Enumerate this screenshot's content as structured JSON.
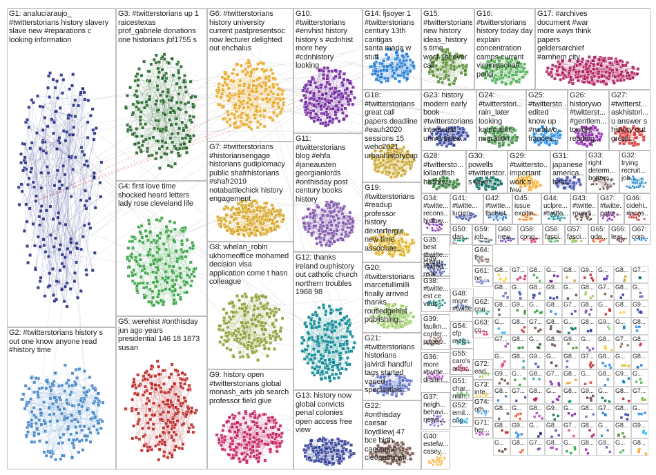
{
  "graph": {
    "title": "",
    "groups": [
      {
        "id": "G1",
        "label": "G1: analuciaraujo_\n#twitterstorians history slavery\nslave new #reparations c\nlooking information",
        "color": "#1a237e"
      },
      {
        "id": "G2",
        "label": "G2: #twitterstorians history s\nout one know anyone read\n#history time",
        "color": "#3b7fc4"
      },
      {
        "id": "G3",
        "label": "G3: #twitterstorians up 1\nraicestexas\nprof_gabriele donations\none historians jbf1755 s",
        "color": "#1b5e20"
      },
      {
        "id": "G4",
        "label": "G4: first love time\nshocked heard letters\nlady rose cleveland life",
        "color": "#2e9e3a"
      },
      {
        "id": "G5",
        "label": "G5: werehist #onthisday\njun ago years\npresidential 146 18 1873\nsusan",
        "color": "#b71c1c"
      },
      {
        "id": "G6",
        "label": "G6: #twitterstorians\nhistory university\ncurrent pastpresentsoc\nnow lecturer delighted\nout ehchalus",
        "color": "#e6a41c"
      },
      {
        "id": "G7",
        "label": "G7: #twitterstorians\n#historiansengage\nhistorians gudiplomacy\npublic shafrhistorians\n#shafr2019\nnotabattlechick history\nengagement",
        "color": "#d4a017"
      },
      {
        "id": "G8",
        "label": "G8: whelan_robin\nukhomeoffice mohamed\ndecision visa\napplication come t hasn\ncolleague",
        "color": "#8a9a2e"
      },
      {
        "id": "G9",
        "label": "G9: history open\n#twitterstorians global\nmonash_arts job search\nprofessor field give",
        "color": "#c2185b"
      },
      {
        "id": "G10",
        "label": "G10: #twitterstorians\n#envhist history\nhistory s #cdnhist\nmore hey\n#cdnhistory\nlooking",
        "color": "#6a1b9a"
      },
      {
        "id": "G11",
        "label": "G11: #twitterstorians\nblog #ehfa\n#janeausten\ngeorgianlords\n#onthisday post\ncentury books\nhistory",
        "color": "#7b4fa8"
      },
      {
        "id": "G12",
        "label": "G12: thanks\nireland ouphistory\nout catholic church\nnorthern troubles\n1968 98",
        "color": "#00838f"
      },
      {
        "id": "G13",
        "label": "G13: history now\nglobal convicts\npenal colonies\nopen access free\nview",
        "color": "#283593"
      },
      {
        "id": "G14",
        "label": "G14: fjsoyer 1\n#twitterstorians\ncentury 13th cantigas\nsanta maria w stuff",
        "color": "#1976d2"
      },
      {
        "id": "G15",
        "label": "G15: #twitterstorians\nnew history\nideas_history s time\nwest 1st over call",
        "color": "#558b2f"
      },
      {
        "id": "G16",
        "label": "G16:\n#twitterstorians\nhistory today day\nexplain\nconcentration\ncamps current\nvirginiaschaff\npolici",
        "color": "#4caf50"
      },
      {
        "id": "G17",
        "label": "G17: #archives\ndocument #war\nmore ways think\npapers\ngeldersarchief\n#arnhem city",
        "color": "#ad1457"
      },
      {
        "id": "G18",
        "label": "G18:\n#twitterstorians\ngreat call\npapers deadline\n#eauh2020\nsessions 15\nwehc2021\nurbanhistorycup",
        "color": "#c9a227"
      },
      {
        "id": "G19",
        "label": "G19:\n#twitterstorians\n#readup\nprofessor\nhistory\ndexterfergie\nnew time\nassociate...",
        "color": "#e0b020"
      },
      {
        "id": "G20",
        "label": "G20:\n#twitterstorians\nmarcetullimilli\nfinally arrived\nthanks\nroutledgehist\npublishing...",
        "color": "#9ccc65"
      },
      {
        "id": "G21",
        "label": "G21:\n#twitterstorians\nhistorians\njaivirdi handful\ntags started\nvaried\nspecialities...",
        "color": "#5c6bc0"
      },
      {
        "id": "G22",
        "label": "G22:\n#onthisday\ncaesar\nlloydllewj 47\nbce birth\ncaesarion\ncleopatra vii...",
        "color": "#6d4c41"
      },
      {
        "id": "G23",
        "label": "G23: history\nmodern early\nbook\n#twitterstorians\ninterested\nuniversities...",
        "color": "#303f9f"
      },
      {
        "id": "G24",
        "label": "G24:\n#twitterstori...\nrain_later\nlooking\nkatricianh\nmigration...",
        "color": "#388e3c"
      },
      {
        "id": "G25",
        "label": "G25:\n#twittersto...\nedited\nknow up\n#ruralwo...\nfrances...",
        "color": "#1e88e5"
      },
      {
        "id": "G26",
        "label": "G26:\nhistorywo\n#twitterst...\n#gentlem...\ntonight\nreading...",
        "color": "#8e24aa"
      },
      {
        "id": "G27",
        "label": "G27:\n#twitterst...\naskhistori...\nu answer s\nhistory out\ngreat...",
        "color": "#d32f2f"
      },
      {
        "id": "G28",
        "label": "G28:\n#twittersto...\nlollardfish\nhistory...",
        "color": "#2e7d32"
      },
      {
        "id": "G30",
        "label": "G30:\npowells\n#twitterstor...\ns fave...",
        "color": "#00695c"
      },
      {
        "id": "G29",
        "label": "G29:\n#twittersto...\nimportant\nwork s few...",
        "color": "#f9a825"
      },
      {
        "id": "G31",
        "label": "G31:\njapanese\namerica...\nheld...",
        "color": "#3949ab"
      },
      {
        "id": "G33",
        "label": "G33:\nright\ndeterm...\nbottom...",
        "color": "#5d4037"
      },
      {
        "id": "G32",
        "label": "G32:\ntrying\nrecruit...\njob...",
        "color": "#0277bd"
      },
      {
        "id": "G34",
        "label": "G34:\n#twitte...\nrecons...\nhistory...",
        "color": "#6a1b9a"
      },
      {
        "id": "G41",
        "label": "G41:\n#twitte...\nlucien...",
        "color": "#283593"
      },
      {
        "id": "G42",
        "label": "G42:\n#twitte...\nthehist...",
        "color": "#1565c0"
      },
      {
        "id": "G45",
        "label": "G45:\nissue\nexcitin...",
        "color": "#ef6c00"
      },
      {
        "id": "G44",
        "label": "G44:\nuclpre...\n#twitte...",
        "color": "#00838f"
      },
      {
        "id": "G43",
        "label": "G43:\n#twitte...\nroundi...",
        "color": "#4e342e"
      },
      {
        "id": "G47",
        "label": "G47:\n#twitte...\npatre...",
        "color": "#7b1fa2"
      },
      {
        "id": "G46",
        "label": "G46:\ncidehi...\n#ecos...",
        "color": "#c62828"
      },
      {
        "id": "G35",
        "label": "G35:\nbest\n#twitte...\ncvhist...",
        "color": "#283593"
      },
      {
        "id": "G50",
        "label": "G50:\ndan...\nla...",
        "color": "#00796b"
      },
      {
        "id": "G59",
        "label": "G59:\njob...",
        "color": "#455a64"
      },
      {
        "id": "G60",
        "label": "G60:\nnew...",
        "color": "#5e35b1"
      },
      {
        "id": "G58",
        "label": "G58:\ncong...",
        "color": "#d81b60"
      },
      {
        "id": "G56",
        "label": "G56:\nfasci...",
        "color": "#43a047"
      },
      {
        "id": "G57",
        "label": "G57:\nfasci...",
        "color": "#7cb342"
      },
      {
        "id": "G65",
        "label": "G65:\node...",
        "color": "#f4511e"
      },
      {
        "id": "G66",
        "label": "G66:\nlear...",
        "color": "#6d4c41"
      },
      {
        "id": "G67",
        "label": "G67:\ncom...",
        "color": "#1e88e5"
      },
      {
        "id": "G49",
        "label": "G49:\n#twitte...\nnsar...",
        "color": "#3949ab"
      },
      {
        "id": "G38",
        "label": "G38:\n#twitte...\nest ce\nvous...",
        "color": "#00897b"
      },
      {
        "id": "G48",
        "label": "G48:\nmore\n#twitte...\nview...",
        "color": "#5c6bc0"
      },
      {
        "id": "G39",
        "label": "G39:\nfaulkn...\nconfer...\npaper...",
        "color": "#8d6e63"
      },
      {
        "id": "G54",
        "label": "G54:\ncfp\nmeg...",
        "color": "#26a69a"
      },
      {
        "id": "G36",
        "label": "G36:\nmore\n#twitte...\ndralun...",
        "color": "#ab47bc"
      },
      {
        "id": "G55",
        "label": "G55:\ncaro's\nama...",
        "color": "#ec407a"
      },
      {
        "id": "G37",
        "label": "G37:\nneigh...\nbehavi...\nnews...",
        "color": "#7e57c2"
      },
      {
        "id": "G52",
        "label": "G52:\nemil...\ncop...",
        "color": "#29b6f6"
      },
      {
        "id": "G51",
        "label": "G51:\nchar...\nnath...",
        "color": "#66bb6a"
      },
      {
        "id": "G40",
        "label": "G40:\nestefw...\ncasey...",
        "color": "#ffa726"
      },
      {
        "id": "G64",
        "label": "G64:\nthe...",
        "color": "#8d6e63"
      },
      {
        "id": "G61",
        "label": "G61:\nne...",
        "color": "#5c6bc0"
      },
      {
        "id": "G62",
        "label": "G62:\ncon...",
        "color": "#26a69a"
      },
      {
        "id": "G63",
        "label": "G63:\nco...",
        "color": "#ec407a"
      },
      {
        "id": "G72",
        "label": "G72:\nearl...",
        "color": "#9ccc65"
      },
      {
        "id": "G73",
        "label": "G73:\ninte...",
        "color": "#ffca28"
      },
      {
        "id": "G74",
        "label": "G74:\noth...",
        "color": "#42a5f5"
      },
      {
        "id": "G71",
        "label": "G71:\nher...",
        "color": "#ab47bc"
      }
    ],
    "small_cells": [
      "G8...",
      "G7...",
      "G8...",
      "G...",
      "G8...",
      "G9...",
      "G..."
    ]
  }
}
